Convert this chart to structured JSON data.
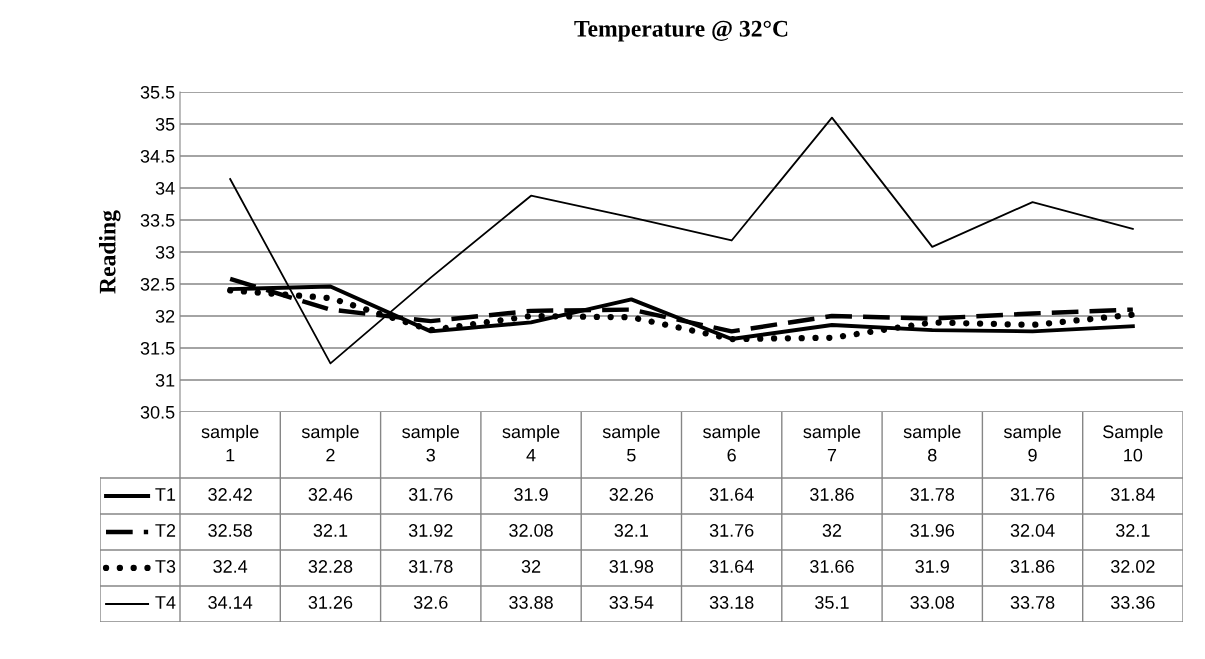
{
  "chart_data": {
    "type": "line",
    "title": "Temperature @ 32°C",
    "ylabel": "Reading",
    "categories": [
      "sample\n1",
      "sample\n2",
      "sample\n3",
      "sample\n4",
      "sample\n5",
      "sample\n6",
      "sample\n7",
      "sample\n8",
      "sample\n9",
      "Sample\n10"
    ],
    "series": [
      {
        "name": "T1",
        "color": "#000000",
        "line_style": "solid",
        "values": [
          32.42,
          32.46,
          31.76,
          31.9,
          32.26,
          31.64,
          31.86,
          31.78,
          31.76,
          31.84
        ]
      },
      {
        "name": "T2",
        "color": "#000000",
        "line_style": "dashed",
        "values": [
          32.58,
          32.1,
          31.92,
          32.08,
          32.1,
          31.76,
          32,
          31.96,
          32.04,
          32.1
        ]
      },
      {
        "name": "T3",
        "color": "#000000",
        "line_style": "dotted",
        "values": [
          32.4,
          32.28,
          31.78,
          32,
          31.98,
          31.64,
          31.66,
          31.9,
          31.86,
          32.02
        ]
      },
      {
        "name": "T4",
        "color": "#000000",
        "line_style": "solid",
        "values": [
          34.14,
          31.26,
          32.6,
          33.88,
          33.54,
          33.18,
          35.1,
          33.08,
          33.78,
          33.36
        ]
      }
    ],
    "ylim": [
      30.5,
      35.5
    ],
    "yticks": [
      30.5,
      31,
      31.5,
      32,
      32.5,
      33,
      33.5,
      34,
      34.5,
      35,
      35.5
    ],
    "grid": "y",
    "legend": "bottom",
    "data_labels": true,
    "marker": "none"
  }
}
